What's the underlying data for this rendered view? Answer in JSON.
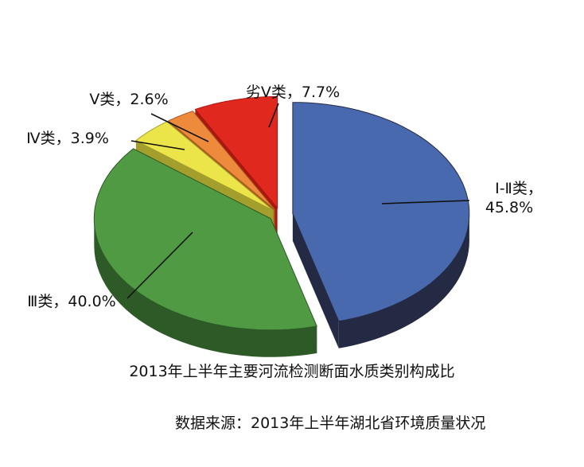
{
  "chart_data": {
    "type": "pie",
    "title": "2013年上半年主要河流检测断面水质类别构成比",
    "source": "数据来源：2013年上半年湖北省环境质量状况",
    "categories": [
      "劣Ⅴ类",
      "Ⅰ-Ⅱ类",
      "Ⅲ类",
      "Ⅳ类",
      "Ⅴ类"
    ],
    "values": [
      7.7,
      45.8,
      40.0,
      3.9,
      2.6
    ],
    "value_labels": [
      "7.7%",
      "45.8%",
      "40.0%",
      "3.9%",
      "2.6%"
    ],
    "colors": [
      "#e0281f",
      "#4869ad",
      "#4f9a43",
      "#ece54a",
      "#ee8a3c"
    ],
    "shade_colors": [
      "#a81810",
      "#252a44",
      "#2d5a27",
      "#a49f2c",
      "#a85a20"
    ],
    "style": "3d-exploded"
  }
}
